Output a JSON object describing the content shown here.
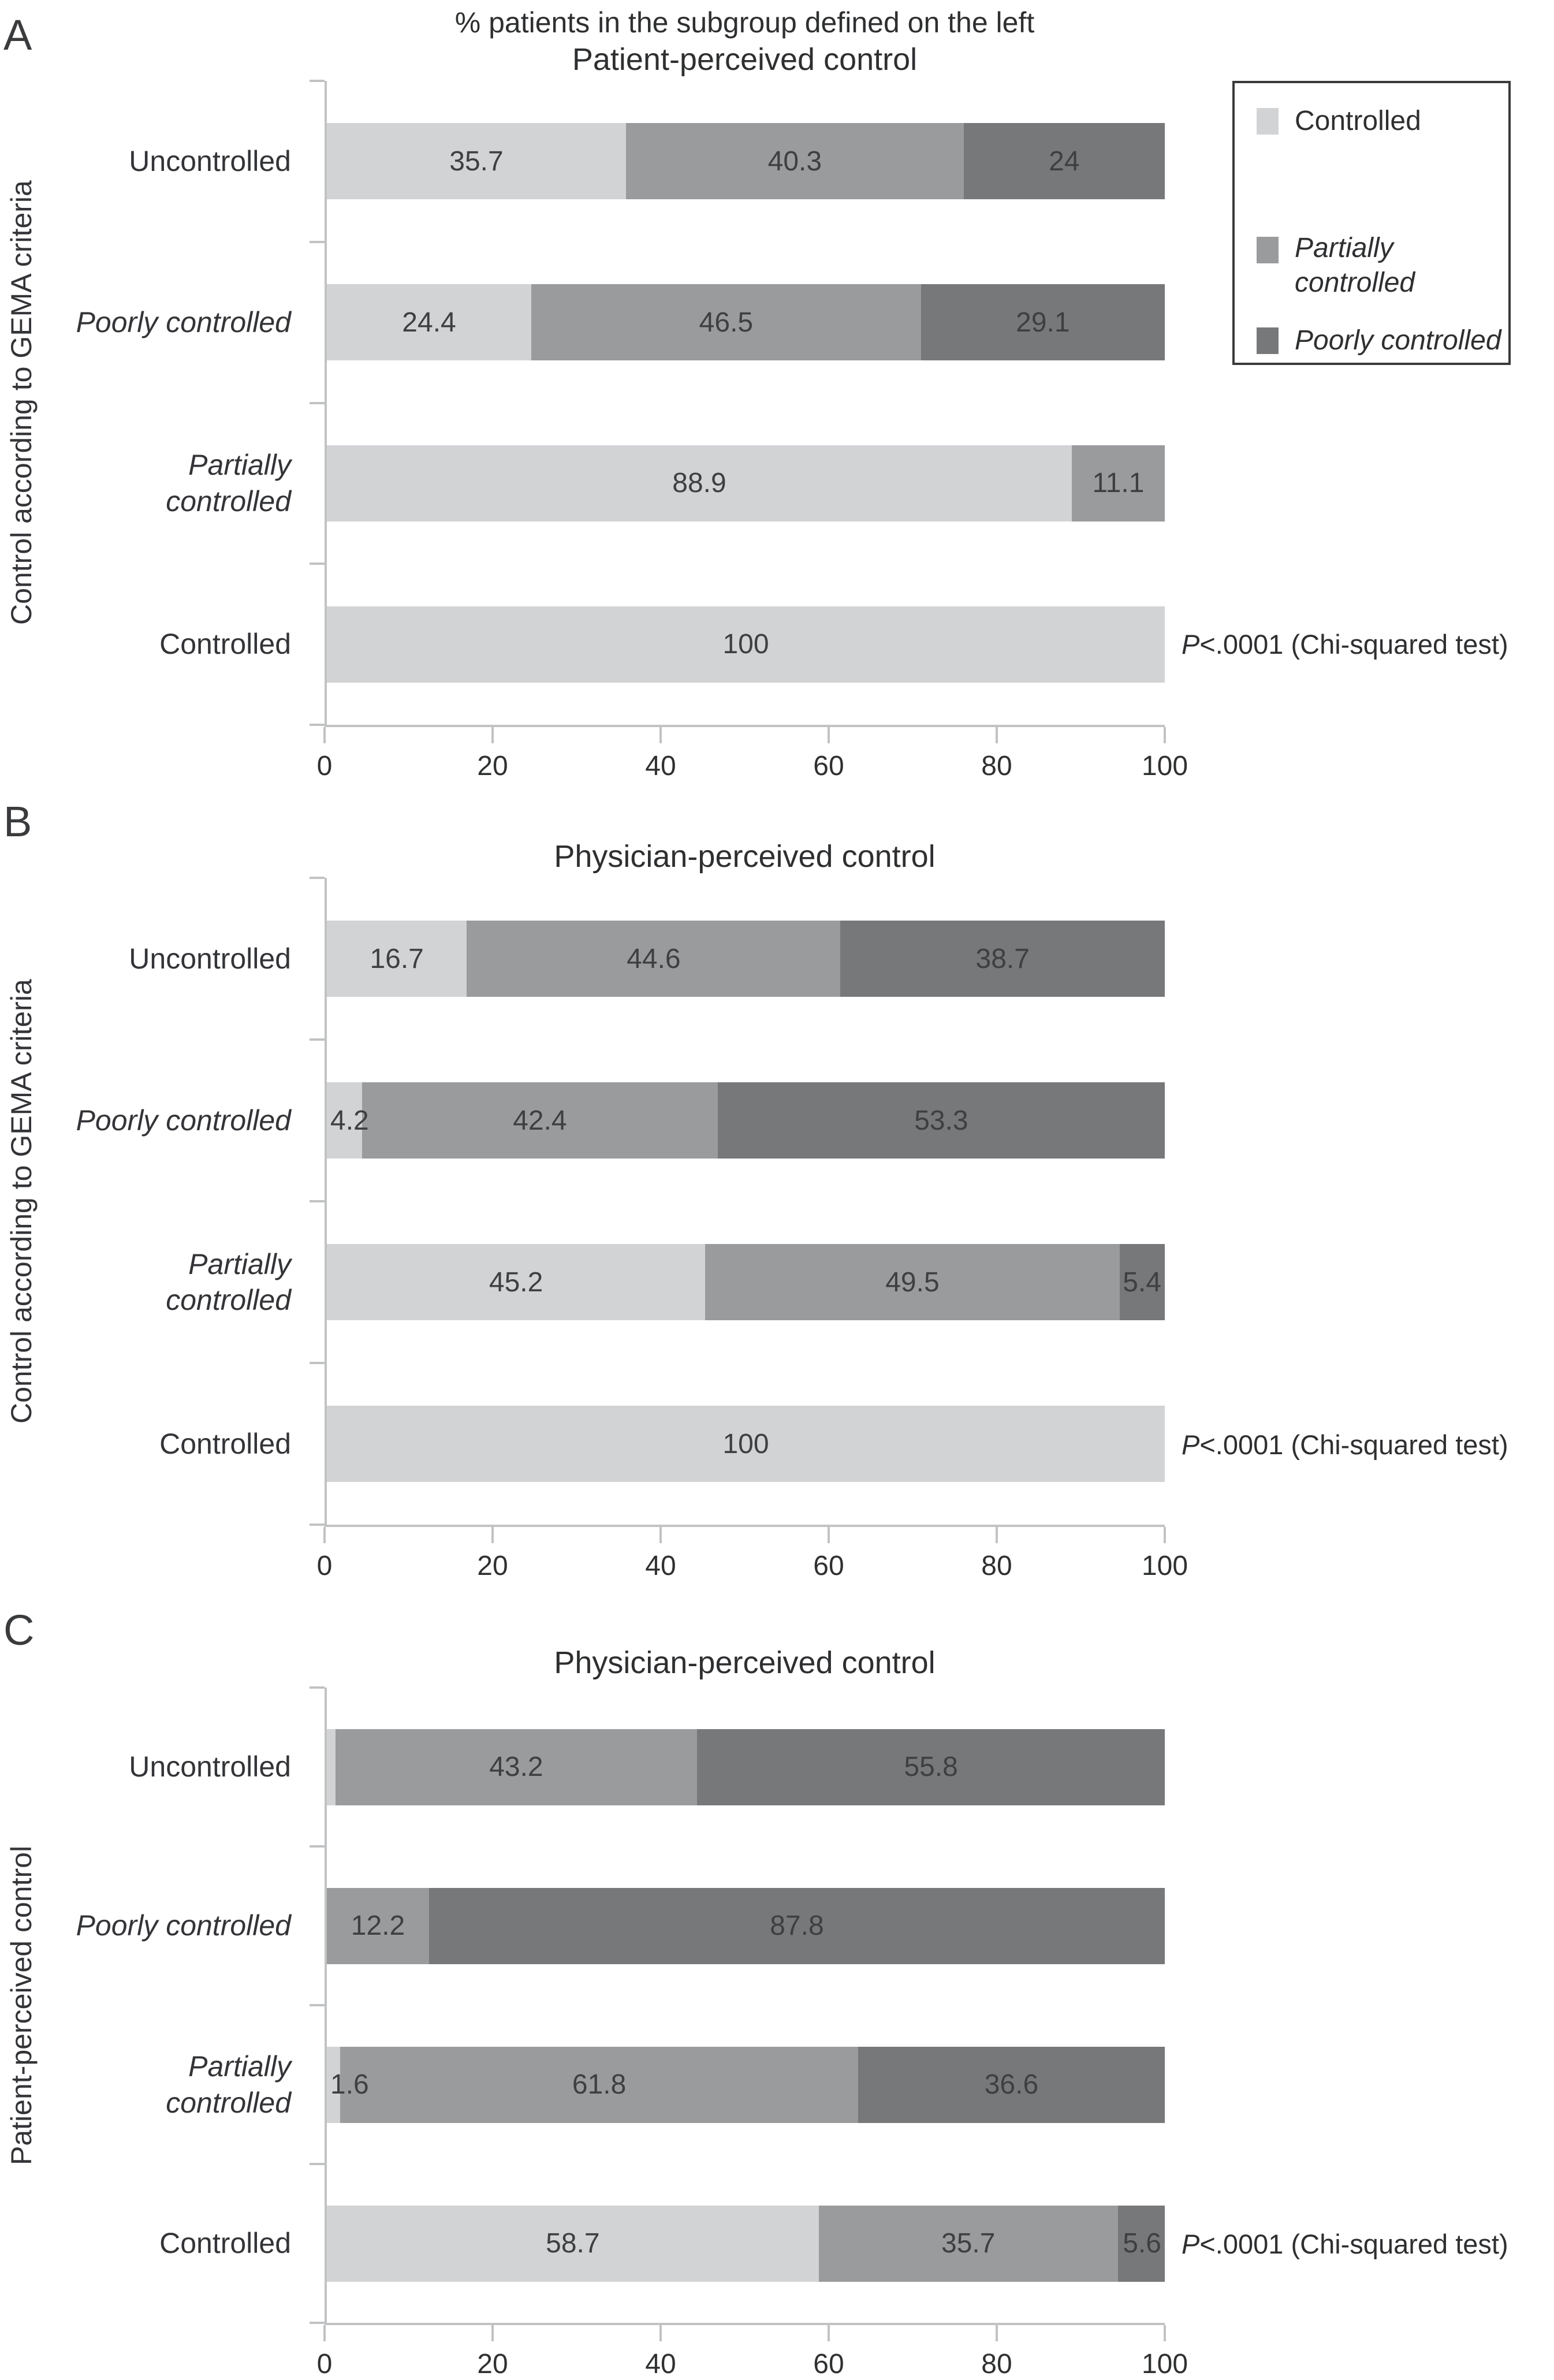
{
  "chart_data": {
    "type": "bar",
    "stacked": true,
    "orientation": "horizontal",
    "suptitle": "% patients in the subgroup defined on the left",
    "x_axis": {
      "min": 0,
      "max": 100,
      "ticks": [
        "0",
        "20",
        "40",
        "60",
        "80",
        "100"
      ]
    },
    "grid": false,
    "colors": {
      "controlled": "#d2d3d5",
      "partially": "#9a9b9d",
      "poorly": "#77787a"
    },
    "legend": {
      "position": "top-right",
      "items": [
        {
          "key": "controlled",
          "label": "Controlled",
          "italic": false
        },
        {
          "key": "partially",
          "label": "Partially\ncontrolled",
          "italic": true
        },
        {
          "key": "poorly",
          "label": "Poorly controlled",
          "italic": true
        }
      ]
    },
    "panels": [
      {
        "letter": "A",
        "title": "Patient-perceived control",
        "y_axis_title": "Control according to GEMA criteria",
        "p_italic": "P",
        "p_rest": "<.0001 (Chi-squared test)",
        "rows": [
          {
            "label": "Uncontrolled",
            "italic": false,
            "segments": [
              {
                "key": "controlled",
                "value": 35.7,
                "label": "35.7"
              },
              {
                "key": "partially",
                "value": 40.3,
                "label": "40.3"
              },
              {
                "key": "poorly",
                "value": 24,
                "label": "24"
              }
            ]
          },
          {
            "label": "Poorly controlled",
            "italic": true,
            "segments": [
              {
                "key": "controlled",
                "value": 24.4,
                "label": "24.4"
              },
              {
                "key": "partially",
                "value": 46.5,
                "label": "46.5"
              },
              {
                "key": "poorly",
                "value": 29.1,
                "label": "29.1"
              }
            ]
          },
          {
            "label": "Partially\ncontrolled",
            "italic": true,
            "segments": [
              {
                "key": "controlled",
                "value": 88.9,
                "label": "88.9"
              },
              {
                "key": "partially",
                "value": 11.1,
                "label": "11.1"
              }
            ]
          },
          {
            "label": "Controlled",
            "italic": false,
            "segments": [
              {
                "key": "controlled",
                "value": 100,
                "label": "100"
              }
            ]
          }
        ]
      },
      {
        "letter": "B",
        "title": "Physician-perceived control",
        "y_axis_title": "Control according to GEMA criteria",
        "p_italic": "P",
        "p_rest": "<.0001 (Chi-squared test)",
        "rows": [
          {
            "label": "Uncontrolled",
            "italic": false,
            "segments": [
              {
                "key": "controlled",
                "value": 16.7,
                "label": "16.7"
              },
              {
                "key": "partially",
                "value": 44.6,
                "label": "44.6"
              },
              {
                "key": "poorly",
                "value": 38.7,
                "label": "38.7"
              }
            ]
          },
          {
            "label": "Poorly controlled",
            "italic": true,
            "segments": [
              {
                "key": "controlled",
                "value": 4.2,
                "label": "4.2"
              },
              {
                "key": "partially",
                "value": 42.4,
                "label": "42.4"
              },
              {
                "key": "poorly",
                "value": 53.3,
                "label": "53.3"
              }
            ]
          },
          {
            "label": "Partially\ncontrolled",
            "italic": true,
            "segments": [
              {
                "key": "controlled",
                "value": 45.2,
                "label": "45.2"
              },
              {
                "key": "partially",
                "value": 49.5,
                "label": "49.5"
              },
              {
                "key": "poorly",
                "value": 5.4,
                "label": "5.4"
              }
            ]
          },
          {
            "label": "Controlled",
            "italic": false,
            "segments": [
              {
                "key": "controlled",
                "value": 100,
                "label": "100"
              }
            ]
          }
        ]
      },
      {
        "letter": "C",
        "title": "Physician-perceived control",
        "y_axis_title": "Patient-perceived control",
        "p_italic": "P",
        "p_rest": "<.0001 (Chi-squared test)",
        "rows": [
          {
            "label": "Uncontrolled",
            "italic": false,
            "segments": [
              {
                "key": "controlled",
                "value": 1.0,
                "label": ""
              },
              {
                "key": "partially",
                "value": 43.2,
                "label": "43.2"
              },
              {
                "key": "poorly",
                "value": 55.8,
                "label": "55.8"
              }
            ]
          },
          {
            "label": "Poorly controlled",
            "italic": true,
            "segments": [
              {
                "key": "partially",
                "value": 12.2,
                "label": "12.2"
              },
              {
                "key": "poorly",
                "value": 87.8,
                "label": "87.8"
              }
            ]
          },
          {
            "label": "Partially\ncontrolled",
            "italic": true,
            "segments": [
              {
                "key": "controlled",
                "value": 1.6,
                "label": "1.6"
              },
              {
                "key": "partially",
                "value": 61.8,
                "label": "61.8"
              },
              {
                "key": "poorly",
                "value": 36.6,
                "label": "36.6"
              }
            ]
          },
          {
            "label": "Controlled",
            "italic": false,
            "segments": [
              {
                "key": "controlled",
                "value": 58.7,
                "label": "58.7"
              },
              {
                "key": "partially",
                "value": 35.7,
                "label": "35.7"
              },
              {
                "key": "poorly",
                "value": 5.6,
                "label": "5.6"
              }
            ]
          }
        ]
      }
    ]
  }
}
